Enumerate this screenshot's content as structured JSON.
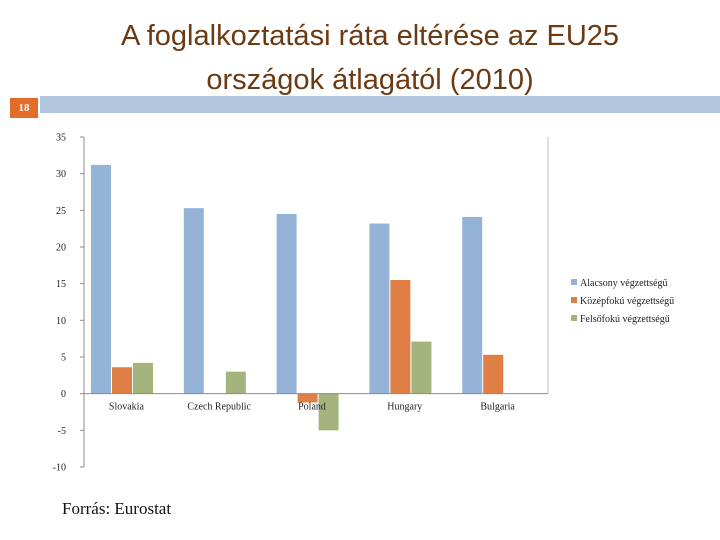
{
  "slide": {
    "title_line1": "A foglalkoztatási ráta eltérése az EU25",
    "title_line2": "országok átlagától (2010)",
    "slide_number": "18",
    "source": "Forrás: Eurostat",
    "accent_color": "#e46c2a",
    "title_color": "#6b3a12",
    "band_color": "#b3c5dc"
  },
  "chart_data": {
    "type": "bar",
    "title": "",
    "xlabel": "",
    "ylabel": "",
    "categories": [
      "Slovakia",
      "Czech Republic",
      "Poland",
      "Hungary",
      "Bulgaria"
    ],
    "series": [
      {
        "name": "Alacsony végzettségű",
        "color": "#95b3d7",
        "values": [
          31.2,
          25.3,
          24.5,
          23.2,
          24.1
        ]
      },
      {
        "name": "Középfokú végzettségű",
        "color": "#e07f45",
        "values": [
          3.6,
          0,
          -1.2,
          15.5,
          5.3
        ]
      },
      {
        "name": "Felsőfokú végzettségű",
        "color": "#a5b37d",
        "values": [
          4.2,
          3.0,
          -5.0,
          7.1,
          0
        ]
      }
    ],
    "ylim": [
      -10,
      35
    ],
    "yticks": [
      35,
      30,
      25,
      20,
      15,
      10,
      5,
      0,
      -5,
      -10
    ],
    "grid": false,
    "legend_position": "right"
  }
}
